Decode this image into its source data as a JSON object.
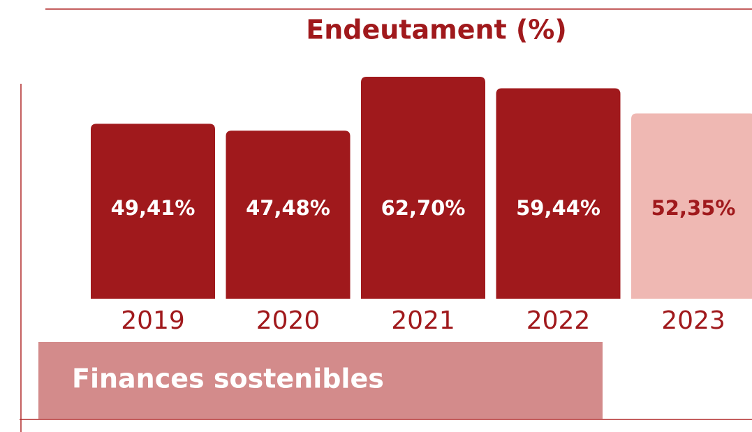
{
  "chart_data": {
    "type": "bar",
    "title": "Endeutament (%)",
    "categories": [
      "2019",
      "2020",
      "2021",
      "2022",
      "2023"
    ],
    "values": [
      49.41,
      47.48,
      62.7,
      59.44,
      52.35
    ],
    "value_labels": [
      "49,41%",
      "47,48%",
      "62,70%",
      "59,44%",
      "52,35%"
    ],
    "colors": [
      "#a0191c",
      "#a0191c",
      "#a0191c",
      "#a0191c",
      "#efb8b3"
    ],
    "label_colors": [
      "#ffffff",
      "#ffffff",
      "#ffffff",
      "#ffffff",
      "#a0191c"
    ],
    "annotation": "Finances sostenibles"
  }
}
